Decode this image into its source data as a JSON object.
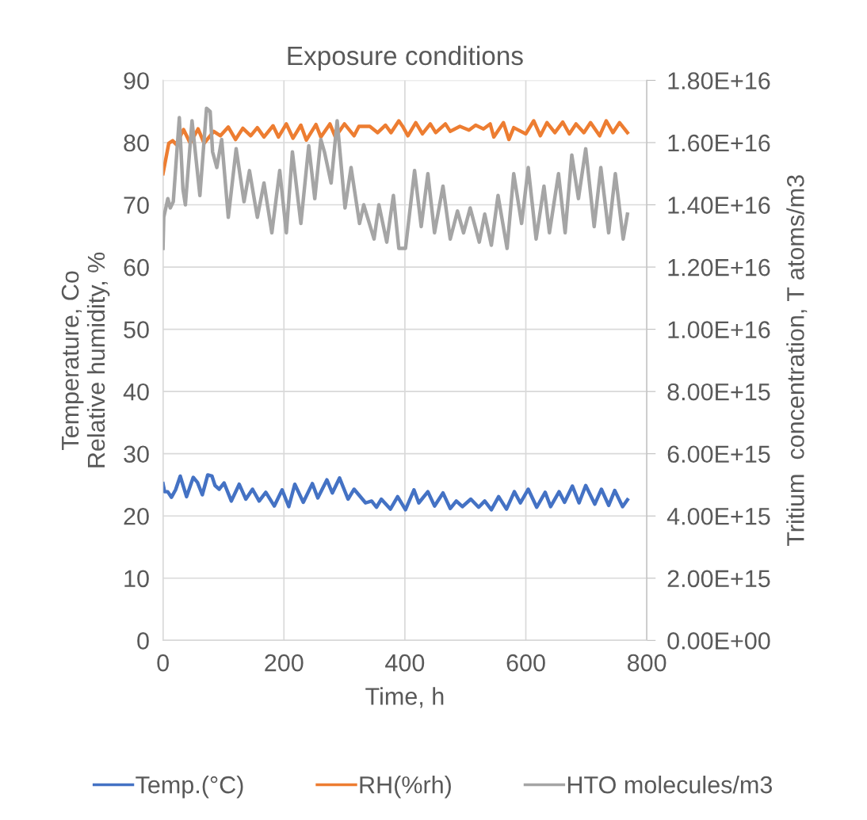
{
  "chart_data": {
    "type": "line",
    "title": "Exposure conditions",
    "xlabel": "Time, h",
    "ylabel": "Temperature, Co\nRelative humidity, %",
    "y2label": "Tritium  concentration, T atoms/m3",
    "xlim": [
      0,
      800
    ],
    "xticks": [
      0,
      200,
      400,
      600,
      800
    ],
    "ylim": [
      0,
      90
    ],
    "yticks": [
      0,
      10,
      20,
      30,
      40,
      50,
      60,
      70,
      80,
      90
    ],
    "y2lim": [
      0,
      1.8e+16
    ],
    "y2ticks": [
      {
        "value": 0,
        "label": "0.00E+00"
      },
      {
        "value": 2000000000000000.0,
        "label": "2.00E+15"
      },
      {
        "value": 4000000000000000.0,
        "label": "4.00E+15"
      },
      {
        "value": 6000000000000000.0,
        "label": "6.00E+15"
      },
      {
        "value": 8000000000000000.0,
        "label": "8.00E+15"
      },
      {
        "value": 1e+16,
        "label": "1.00E+16"
      },
      {
        "value": 1.2e+16,
        "label": "1.20E+16"
      },
      {
        "value": 1.4e+16,
        "label": "1.40E+16"
      },
      {
        "value": 1.6e+16,
        "label": "1.60E+16"
      },
      {
        "value": 1.8e+16,
        "label": "1.80E+16"
      }
    ],
    "grid": true,
    "legend": "bottom",
    "marker": "none",
    "line_style": "solid",
    "series": [
      {
        "name": "Temp.(°C)",
        "color": "#4472c4",
        "x": [
          0,
          2.6,
          7.8,
          14,
          20.8,
          28.5,
          39,
          50,
          57,
          65,
          74,
          81,
          86,
          93,
          101,
          113,
          126,
          137,
          148,
          159,
          170,
          184,
          197,
          208,
          218,
          232,
          247,
          256,
          271,
          280,
          292,
          306,
          316,
          335,
          345,
          353,
          361,
          376,
          388,
          401,
          415,
          423,
          438,
          449,
          463,
          475,
          485,
          495,
          509,
          522,
          532,
          543,
          555,
          568,
          581,
          591,
          604,
          618,
          632,
          641,
          655,
          664,
          677,
          688,
          699,
          714,
          725,
          737,
          747,
          760,
          768
        ],
        "values": [
          25.2,
          23.9,
          23.9,
          23.0,
          24.2,
          26.4,
          23.1,
          26.2,
          25.4,
          23.4,
          26.6,
          26.4,
          24.9,
          24.3,
          25.3,
          22.4,
          25.1,
          22.7,
          24.3,
          22.4,
          23.8,
          21.6,
          24.2,
          21.5,
          25.1,
          22.2,
          25.2,
          22.9,
          25.8,
          23.7,
          26.1,
          22.7,
          24.3,
          22.1,
          22.4,
          21.4,
          22.7,
          21.1,
          23.1,
          21.0,
          24.2,
          22.1,
          23.9,
          21.6,
          23.7,
          21.2,
          22.4,
          21.5,
          22.7,
          21.4,
          22.4,
          21.0,
          23.1,
          21.1,
          23.9,
          22.1,
          24.3,
          21.4,
          23.8,
          21.5,
          23.9,
          22.2,
          24.8,
          22.1,
          24.9,
          21.9,
          24.3,
          21.7,
          24.1,
          21.5,
          22.6
        ]
      },
      {
        "name": "RH(%rh)",
        "color": "#ed7d31",
        "x": [
          0,
          9.6,
          16,
          22,
          34,
          45,
          58,
          68,
          84,
          95,
          108,
          120,
          132,
          145,
          156,
          167,
          182,
          191,
          204,
          215,
          228,
          237,
          253,
          261,
          276,
          285,
          300,
          316,
          324,
          342,
          355,
          368,
          377,
          390,
          397,
          405,
          418,
          429,
          442,
          451,
          467,
          475,
          491,
          506,
          517,
          530,
          541,
          547,
          563,
          572,
          580,
          600,
          613,
          624,
          635,
          648,
          661,
          672,
          683,
          696,
          707,
          722,
          733,
          744,
          755,
          768
        ],
        "values": [
          75.0,
          79.9,
          80.3,
          79.7,
          82.1,
          79.9,
          82.2,
          79.9,
          81.8,
          81.1,
          82.5,
          80.5,
          82.3,
          81.1,
          82.4,
          80.9,
          82.7,
          80.9,
          83.0,
          80.7,
          82.8,
          80.4,
          82.9,
          80.9,
          83.0,
          80.9,
          83.0,
          81.1,
          82.6,
          82.6,
          81.6,
          82.8,
          81.6,
          83.5,
          82.5,
          81.1,
          83.2,
          81.4,
          83.0,
          81.6,
          83.0,
          81.8,
          82.6,
          82.0,
          82.8,
          82.2,
          83.0,
          80.9,
          83.2,
          80.5,
          82.4,
          81.4,
          83.5,
          81.1,
          83.2,
          81.6,
          83.3,
          81.4,
          83.0,
          81.6,
          83.2,
          81.1,
          83.5,
          81.6,
          83.2,
          81.6
        ]
      },
      {
        "name": "HTO molecules/m3",
        "color": "#a5a5a5",
        "axis": "y2",
        "x": [
          0,
          1.3,
          8,
          12,
          17,
          27,
          33,
          37,
          48,
          61,
          72,
          78,
          82,
          89,
          97,
          108,
          121,
          134,
          143,
          156,
          167,
          180,
          193,
          204,
          214,
          228,
          241,
          251,
          261,
          267,
          278,
          288,
          301,
          311,
          325,
          332,
          349,
          357,
          370,
          381,
          390,
          401,
          416,
          427,
          438,
          449,
          463,
          475,
          487,
          497,
          508,
          523,
          532,
          543,
          554,
          569,
          580,
          593,
          604,
          617,
          630,
          639,
          654,
          665,
          676,
          687,
          699,
          713,
          724,
          737,
          748,
          761,
          768
        ],
        "values": [
          1.26e+16,
          1.36e+16,
          1.42e+16,
          1.39e+16,
          1.41e+16,
          1.68e+16,
          1.45e+16,
          1.4e+16,
          1.67e+16,
          1.43e+16,
          1.71e+16,
          1.7e+16,
          1.57e+16,
          1.52e+16,
          1.61e+16,
          1.36e+16,
          1.58e+16,
          1.41e+16,
          1.51e+16,
          1.36e+16,
          1.47e+16,
          1.31e+16,
          1.51e+16,
          1.31e+16,
          1.57e+16,
          1.34e+16,
          1.59e+16,
          1.42e+16,
          1.61e+16,
          1.57e+16,
          1.47e+16,
          1.67e+16,
          1.39e+16,
          1.52e+16,
          1.34e+16,
          1.4e+16,
          1.29e+16,
          1.4e+16,
          1.28e+16,
          1.43e+16,
          1.26e+16,
          1.26e+16,
          1.51e+16,
          1.33e+16,
          1.5e+16,
          1.31e+16,
          1.46e+16,
          1.29e+16,
          1.38e+16,
          1.31e+16,
          1.39e+16,
          1.28e+16,
          1.37e+16,
          1.27e+16,
          1.43e+16,
          1.26e+16,
          1.5e+16,
          1.34e+16,
          1.52e+16,
          1.29e+16,
          1.46e+16,
          1.31e+16,
          1.5e+16,
          1.31e+16,
          1.56e+16,
          1.42e+16,
          1.58e+16,
          1.33e+16,
          1.52e+16,
          1.31e+16,
          1.5e+16,
          1.29e+16,
          1.37e+16
        ]
      }
    ]
  }
}
